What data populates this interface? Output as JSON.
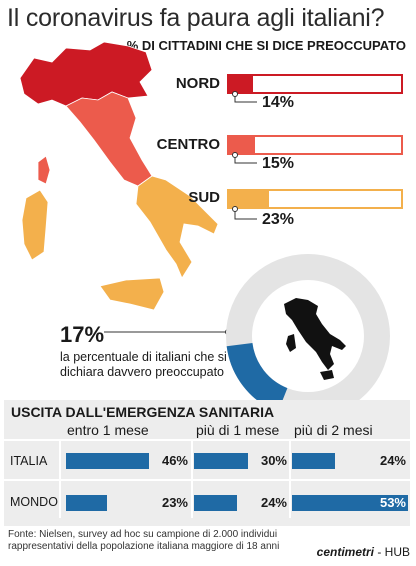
{
  "title": "Il coronavirus fa paura agli italiani?",
  "subtitle": "% DI CITTADINI CHE SI DICE PREOCCUPATO",
  "colors": {
    "nord": "#cc1a24",
    "centro": "#ec5b4c",
    "sud": "#f3b04c",
    "ring_track": "#e4e4e4",
    "blue": "#1f6aa5"
  },
  "regions": [
    {
      "name": "NORD",
      "pct_label": "14%",
      "value": 14
    },
    {
      "name": "CENTRO",
      "pct_label": "15%",
      "value": 15
    },
    {
      "name": "SUD",
      "pct_label": "23%",
      "value": 23
    }
  ],
  "highlight": {
    "pct_label": "17%",
    "value": 17,
    "text": "la percentuale di italiani che si dichiara davvero preoccupato"
  },
  "panel": {
    "title": "USCITA DALL'EMERGENZA SANITARIA",
    "columns": [
      "entro 1 mese",
      "più di 1 mese",
      "più di 2 mesi"
    ],
    "rows": [
      {
        "label": "ITALIA",
        "labels": [
          "46%",
          "30%",
          "24%"
        ]
      },
      {
        "label": "MONDO",
        "labels": [
          "23%",
          "24%",
          "53%"
        ]
      }
    ]
  },
  "chart_data": [
    {
      "type": "bar",
      "title": "% DI CITTADINI CHE SI DICE PREOCCUPATO",
      "categories": [
        "NORD",
        "CENTRO",
        "SUD"
      ],
      "values": [
        14,
        15,
        23
      ]
    },
    {
      "type": "pie",
      "categories": [
        "preoccupato"
      ],
      "values": [
        17
      ]
    },
    {
      "type": "bar",
      "title": "USCITA DALL'EMERGENZA SANITARIA",
      "categories": [
        "entro 1 mese",
        "più di 1 mese",
        "più di 2 mesi"
      ],
      "series": [
        {
          "name": "ITALIA",
          "values": [
            46,
            30,
            24
          ]
        },
        {
          "name": "MONDO",
          "values": [
            23,
            24,
            53
          ]
        }
      ]
    }
  ],
  "footnote": "Fonte: Nielsen, survey ad hoc su campione di 2.000 individui rappresentativi della popolazione italiana maggiore di 18 anni",
  "brand": {
    "name": "centimetri",
    "suffix": " - HUB"
  }
}
